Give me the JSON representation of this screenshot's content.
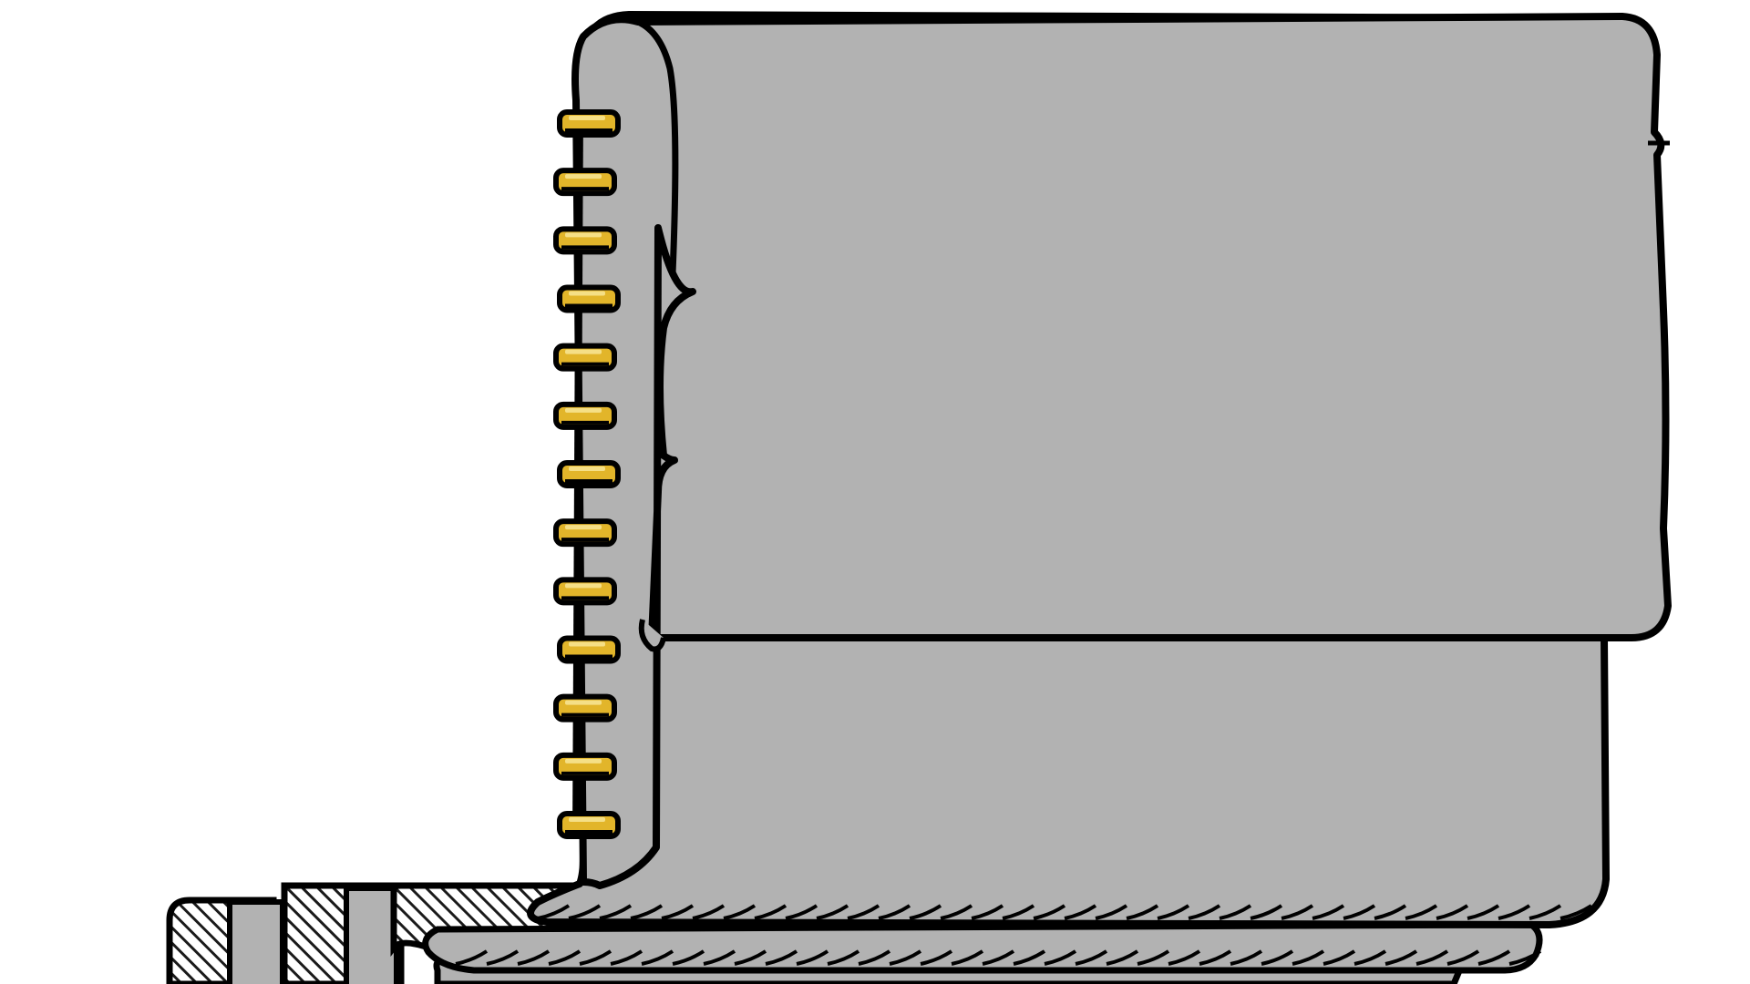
{
  "scene": {
    "background_color": "#ffffff",
    "page_color": "#b2b2b2",
    "outline_color": "#000000",
    "ring_color": "#e2b52a",
    "ring_highlight_color": "#f5df86",
    "hatch_color": "#1a1a1a"
  },
  "notebook": {
    "top_flap": {
      "icon": "notebook-cover-flap"
    },
    "rings": {
      "count": 13,
      "icon": "spiral-ring-icon"
    },
    "stacked_pages": {
      "count": 3
    },
    "back_covers": {
      "count": 3,
      "pattern": "diagonal-hatch"
    },
    "text": []
  }
}
